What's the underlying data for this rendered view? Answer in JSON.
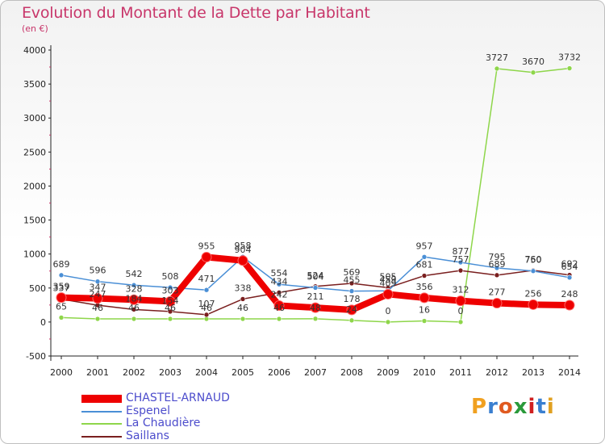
{
  "title": "Evolution du Montant de la Dette par Habitant",
  "subtitle": "(en €)",
  "logo": "Proxiti",
  "chart_data": {
    "type": "line",
    "x": [
      "2000",
      "2001",
      "2002",
      "2003",
      "2004",
      "2005",
      "2006",
      "2007",
      "2008",
      "2009",
      "2010",
      "2011",
      "2012",
      "2013",
      "2014"
    ],
    "ylim": [
      -500,
      4000
    ],
    "yticks": [
      -500,
      0,
      500,
      1000,
      1500,
      2000,
      2500,
      3000,
      3500,
      4000
    ],
    "grid": false,
    "legend_position": "bottom-left",
    "series": [
      {
        "name": "CHASTEL-ARNAUD",
        "color": "#ee0000",
        "values": [
          359,
          347,
          328,
          303,
          955,
          904,
          242,
          211,
          178,
          409,
          356,
          312,
          277,
          256,
          248
        ]
      },
      {
        "name": "Espenel",
        "color": "#4a8fd6",
        "values": [
          689,
          596,
          542,
          508,
          471,
          958,
          554,
          504,
          455,
          459,
          957,
          877,
          795,
          750,
          654
        ]
      },
      {
        "name": "La Chaudière",
        "color": "#8ed64a",
        "values": [
          65,
          46,
          46,
          46,
          46,
          46,
          46,
          48,
          24,
          0,
          16,
          0,
          3727,
          3670,
          3732
        ]
      },
      {
        "name": "Saillans",
        "color": "#7a1f1f",
        "values": [
          337,
          247,
          184,
          154,
          107,
          338,
          434,
          524,
          569,
          505,
          681,
          757,
          689,
          760,
          692
        ]
      }
    ]
  }
}
